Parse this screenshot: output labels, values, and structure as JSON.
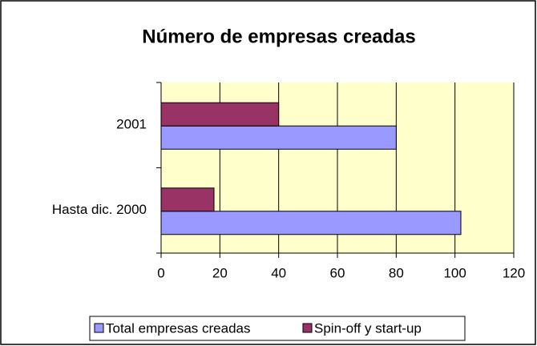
{
  "chart_data": {
    "type": "bar",
    "orientation": "horizontal",
    "title": "Número de empresas creadas",
    "categories": [
      "Hasta dic. 2000",
      "2001"
    ],
    "series": [
      {
        "name": "Total empresas creadas",
        "color": "#9999ff",
        "values": [
          102,
          80
        ]
      },
      {
        "name": "Spin-off y start-up",
        "color": "#993366",
        "values": [
          18,
          40
        ]
      }
    ],
    "xlim": [
      0,
      120
    ],
    "xticks": [
      0,
      20,
      40,
      60,
      80,
      100,
      120
    ],
    "grid": true,
    "plot_background": "#ffffcc",
    "legend": "bottom"
  }
}
